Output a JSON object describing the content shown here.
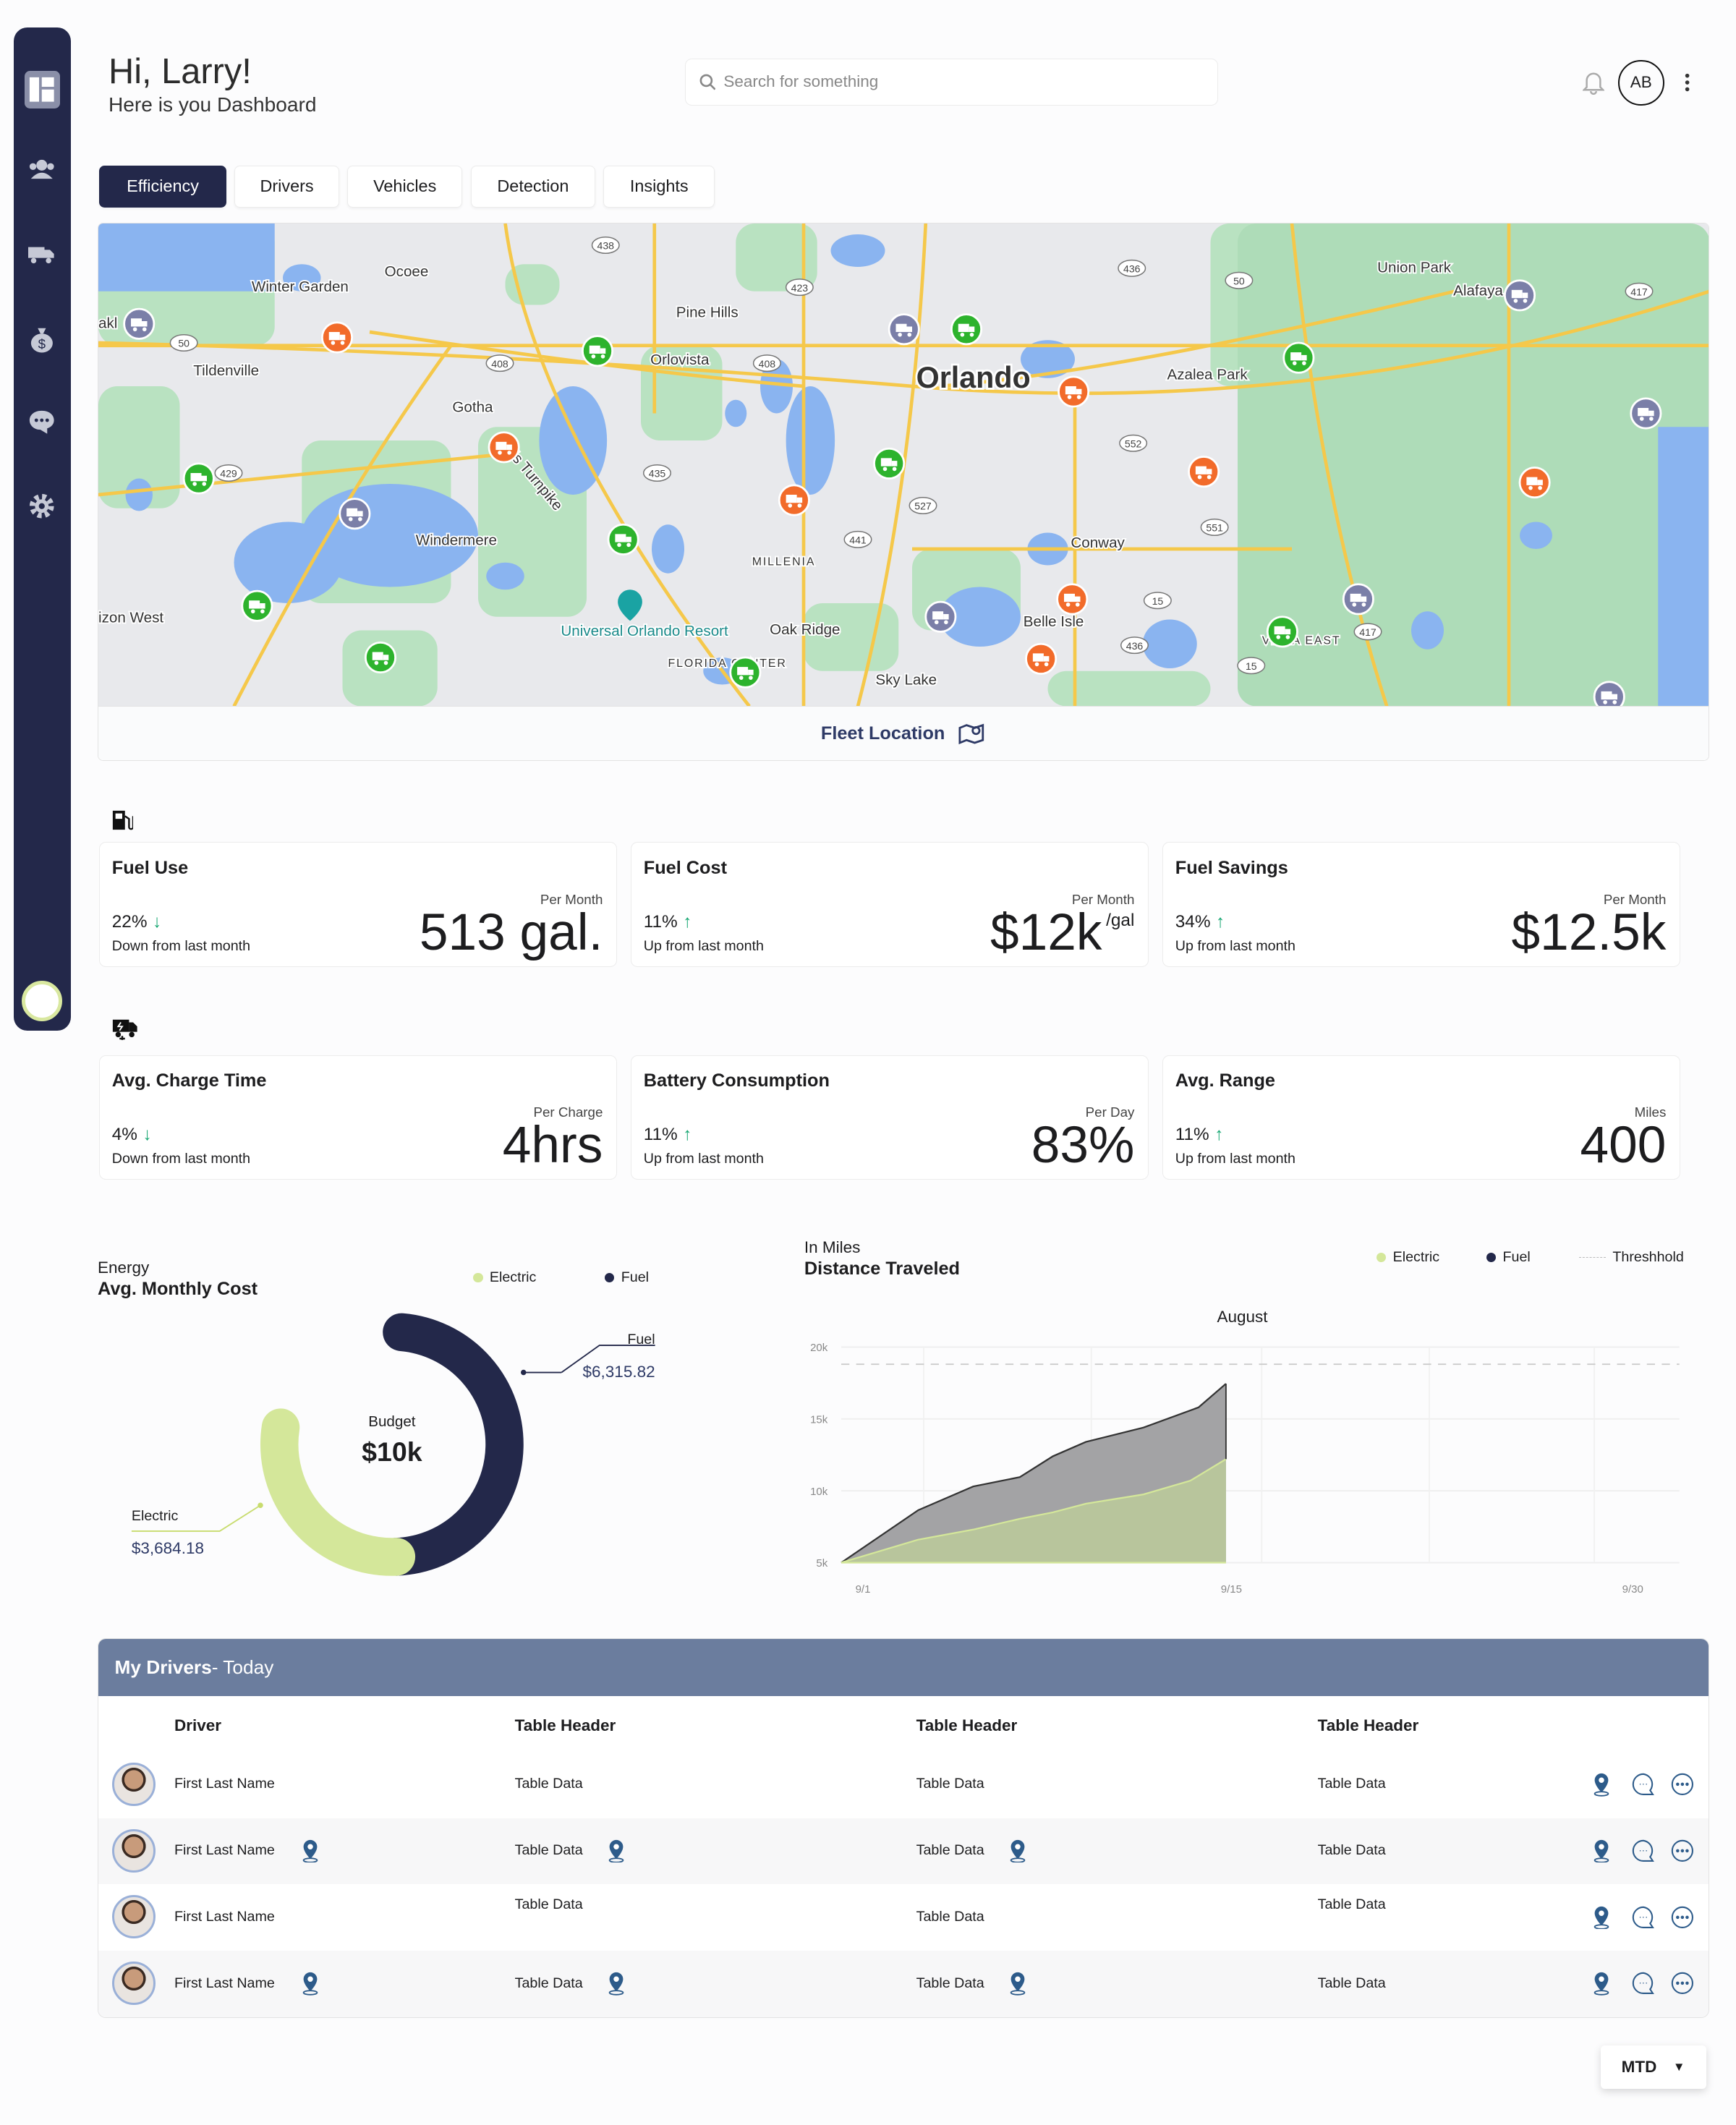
{
  "header": {
    "greeting": "Hi, Larry!",
    "subtitle": "Here is you Dashboard",
    "search_placeholder": "Search for something",
    "avatar_initials": "AB"
  },
  "tabs": [
    {
      "label": "Efficiency",
      "active": true
    },
    {
      "label": "Drivers"
    },
    {
      "label": "Vehicles"
    },
    {
      "label": "Detection"
    },
    {
      "label": "Insights"
    }
  ],
  "map": {
    "footer_label": "Fleet Location",
    "places": [
      "Winter Garden",
      "Ocoee",
      "Pine Hills",
      "Orlovista",
      "Orlando",
      "Union Park",
      "Alafaya",
      "Azalea Park",
      "Tildenville",
      "Gotha",
      "Windermere",
      "MILLENIA",
      "Conway",
      "Belle Isle",
      "Oak Ridge",
      "Universal Orlando Resort",
      "FLORIDA CENTER",
      "Sky Lake",
      "izon West",
      "akl",
      "VISTA EAST",
      "Ja's Turnpike"
    ],
    "route_shields": [
      "438",
      "423",
      "436",
      "50",
      "50",
      "408",
      "408",
      "429",
      "435",
      "527",
      "441",
      "552",
      "551",
      "15",
      "15",
      "417",
      "436",
      "417"
    ],
    "colors": {
      "fuel_marker": "#7b7fa8",
      "alert_marker": "#f26b2a",
      "ev_marker": "#2db32d"
    }
  },
  "fuel_section": {
    "icon": "fuel-pump-icon",
    "cards": [
      {
        "title": "Fuel Use",
        "pct": "22%",
        "dir": "down",
        "change": "Down from last month",
        "period": "Per Month",
        "value": "513 gal.",
        "unit": ""
      },
      {
        "title": "Fuel Cost",
        "pct": "11%",
        "dir": "up",
        "change": "Up from last month",
        "period": "Per Month",
        "value": "$12k",
        "unit": "/gal"
      },
      {
        "title": "Fuel Savings",
        "pct": "34%",
        "dir": "up",
        "change": "Up from last month",
        "period": "Per Month",
        "value": "$12.5k",
        "unit": ""
      }
    ]
  },
  "ev_section": {
    "icon": "ev-truck-icon",
    "cards": [
      {
        "title": "Avg. Charge Time",
        "pct": "4%",
        "dir": "down",
        "change": "Down from last month",
        "period": "Per Charge",
        "value": "4hrs",
        "unit": ""
      },
      {
        "title": "Battery Consumption",
        "pct": "11%",
        "dir": "up",
        "change": "Up from last month",
        "period": "Per Day",
        "value": "83%",
        "unit": ""
      },
      {
        "title": "Avg. Range",
        "pct": "11%",
        "dir": "up",
        "change": "Up from last month",
        "period": "Miles",
        "value": "400",
        "unit": ""
      }
    ]
  },
  "chart_data": [
    {
      "type": "pie",
      "subtitle": "Energy",
      "title": "Avg. Monthly Cost",
      "center_label": "Budget",
      "center_value": "$10k",
      "legend": [
        "Electric",
        "Fuel"
      ],
      "slices": [
        {
          "name": "Fuel",
          "value": 6315.82,
          "label": "$6,315.82",
          "color": "#23284a"
        },
        {
          "name": "Electric",
          "value": 3684.18,
          "label": "$3,684.18",
          "color": "#d4e79a"
        }
      ]
    },
    {
      "type": "area",
      "subtitle": "In Miles",
      "title": "Distance Traveled",
      "period_label": "August",
      "legend": [
        "Electric",
        "Fuel",
        "Threshhold"
      ],
      "yticks": [
        "20k",
        "15k",
        "10k",
        "5k"
      ],
      "ylim": [
        5000,
        20000
      ],
      "xticks": [
        {
          "day": 0,
          "label": "9/1"
        },
        {
          "day": 14,
          "label": "9/15"
        },
        {
          "day": 29,
          "label": "9/30"
        }
      ],
      "xlim": [
        0,
        30.5
      ],
      "threshold": 18800,
      "series": [
        {
          "name": "Fuel",
          "color": "#a3a3a5",
          "x": [
            0,
            2.8,
            4.8,
            6.5,
            7.7,
            8.9,
            11,
            13,
            14
          ],
          "y": [
            5000,
            8650,
            10300,
            10950,
            12400,
            13400,
            14400,
            15800,
            17450
          ]
        },
        {
          "name": "Electric",
          "color": "#b8c59c",
          "x": [
            0,
            2.8,
            4.8,
            6.5,
            7.7,
            8.9,
            11,
            12.7,
            14
          ],
          "y": [
            5000,
            6600,
            7300,
            8050,
            8500,
            9100,
            9750,
            10700,
            12200
          ]
        }
      ]
    }
  ],
  "drivers_table": {
    "title": "My Drivers",
    "title_suffix": " - Today",
    "headers": [
      "Driver",
      "Table Header",
      "Table Header",
      "Table Header"
    ],
    "rows": [
      {
        "name": "First Last Name",
        "c1": "Table Data",
        "c2": "Table Data",
        "c3": "Table Data"
      },
      {
        "name": "First Last Name",
        "c1": "Table Data",
        "c2": "Table Data",
        "c3": "Table Data"
      },
      {
        "name": "First Last Name",
        "c1": "Table Data",
        "c2": "Table Data",
        "c3": "Table Data"
      },
      {
        "name": "First Last Name",
        "c1": "Table Data",
        "c2": "Table Data",
        "c3": "Table Data"
      }
    ]
  },
  "period_select": {
    "value": "MTD"
  }
}
